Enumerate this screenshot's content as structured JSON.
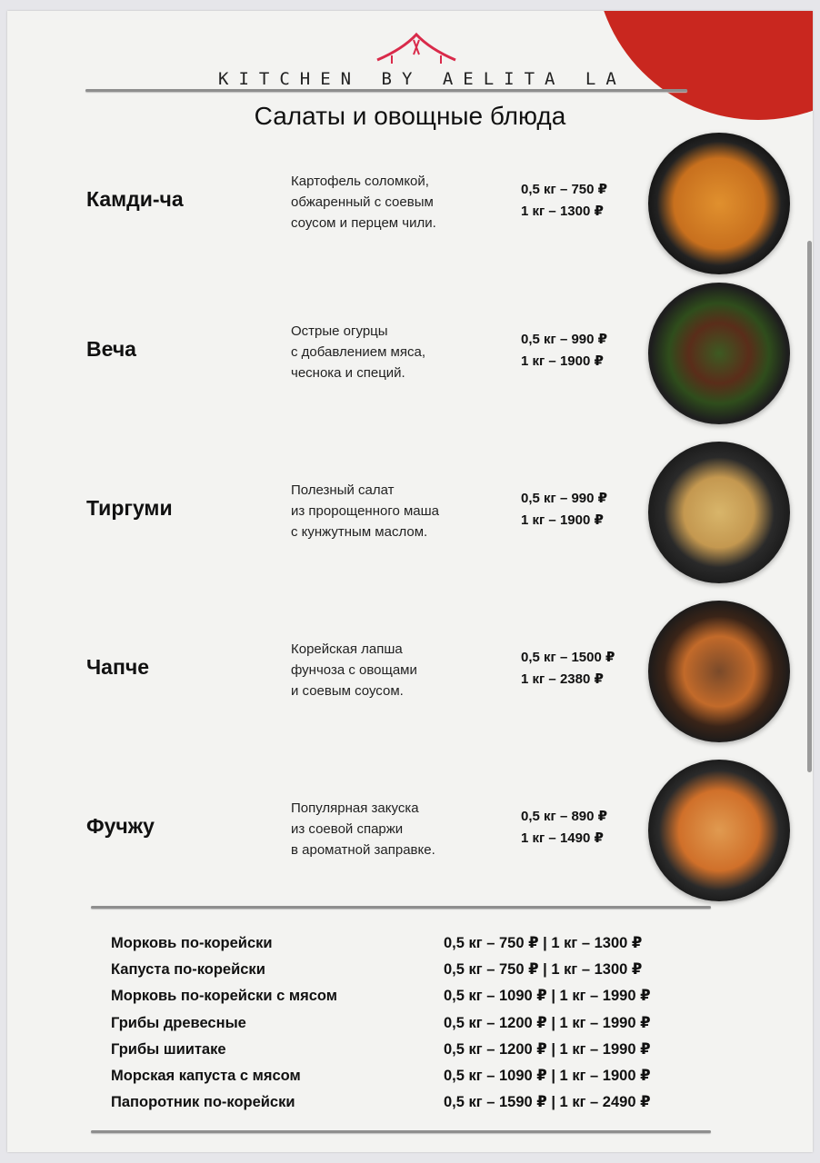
{
  "header": {
    "brand": "KITCHEN BY AELITA LA",
    "title": "Салаты и овощные блюда",
    "accent_color": "#c9271f"
  },
  "dishes": [
    {
      "name": "Камди-ча",
      "description": [
        "Картофель соломкой,",
        "обжаренный с соевым",
        "соусом и перцем чили."
      ],
      "prices": [
        "0,5 кг – 750 ₽",
        "1 кг – 1300 ₽"
      ]
    },
    {
      "name": "Веча",
      "description": [
        "Острые огурцы",
        "с добавлением мяса,",
        "чеснока и специй."
      ],
      "prices": [
        "0,5 кг – 990 ₽",
        "1 кг – 1900 ₽"
      ]
    },
    {
      "name": "Тиргуми",
      "description": [
        "Полезный салат",
        "из пророщенного маша",
        "с кунжутным маслом."
      ],
      "prices": [
        "0,5 кг – 990 ₽",
        "1 кг – 1900 ₽"
      ]
    },
    {
      "name": "Чапче",
      "description": [
        "Корейская лапша",
        "фунчоза с овощами",
        "и соевым соусом."
      ],
      "prices": [
        "0,5 кг – 1500 ₽",
        "1 кг – 2380 ₽"
      ]
    },
    {
      "name": "Фучжу",
      "description": [
        "Популярная закуска",
        "из соевой спаржи",
        "в ароматной заправке."
      ],
      "prices": [
        "0,5 кг – 890 ₽",
        "1 кг – 1490 ₽"
      ]
    }
  ],
  "extras": [
    {
      "name": "Морковь по-корейски",
      "price": "0,5 кг – 750 ₽ | 1 кг – 1300 ₽"
    },
    {
      "name": "Капуста по-корейски",
      "price": "0,5 кг – 750 ₽ | 1 кг – 1300 ₽"
    },
    {
      "name": "Морковь по-корейски с мясом",
      "price": "0,5 кг – 1090 ₽ | 1 кг – 1990 ₽"
    },
    {
      "name": "Грибы древесные",
      "price": "0,5 кг – 1200 ₽ | 1 кг – 1990 ₽"
    },
    {
      "name": "Грибы шиитаке",
      "price": "0,5 кг – 1200 ₽ | 1 кг – 1990 ₽"
    },
    {
      "name": "Морская капуста с мясом",
      "price": "0,5 кг – 1090 ₽ | 1 кг – 1900 ₽"
    },
    {
      "name": "Папоротник по-корейски",
      "price": "0,5 кг – 1590 ₽ | 1 кг – 2490 ₽"
    }
  ]
}
